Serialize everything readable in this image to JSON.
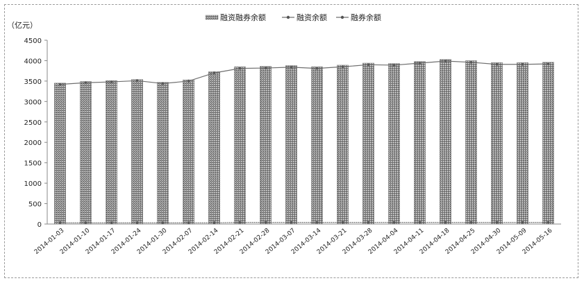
{
  "chart_data": {
    "type": "bar",
    "unit_label": "（亿元）",
    "legend": [
      "融资融券余额",
      "融资余额",
      "融券余额"
    ],
    "legend_position": "top",
    "categories": [
      "2014-01-03",
      "2014-01-10",
      "2014-01-17",
      "2014-01-24",
      "2014-01-30",
      "2014-02-07",
      "2014-02-14",
      "2014-02-21",
      "2014-02-28",
      "2014-03-07",
      "2014-03-14",
      "2014-03-21",
      "2014-03-28",
      "2014-04-04",
      "2014-04-11",
      "2014-04-18",
      "2014-04-25",
      "2014-04-30",
      "2014-05-09",
      "2014-05-16"
    ],
    "series": [
      {
        "name": "融资融券余额",
        "kind": "bar",
        "values": [
          3450,
          3490,
          3510,
          3540,
          3470,
          3530,
          3730,
          3850,
          3860,
          3880,
          3850,
          3890,
          3940,
          3930,
          3980,
          4030,
          4000,
          3950,
          3950,
          3960
        ]
      },
      {
        "name": "融资余额",
        "kind": "line",
        "values": [
          3420,
          3460,
          3480,
          3510,
          3440,
          3500,
          3700,
          3810,
          3820,
          3840,
          3810,
          3850,
          3900,
          3890,
          3940,
          3990,
          3960,
          3910,
          3910,
          3920
        ]
      },
      {
        "name": "融券余额",
        "kind": "line",
        "values": [
          30,
          30,
          30,
          30,
          30,
          30,
          30,
          40,
          40,
          40,
          40,
          40,
          40,
          40,
          40,
          40,
          40,
          40,
          40,
          40
        ]
      }
    ],
    "ylim": [
      0,
      4500
    ],
    "yticks": [
      0,
      500,
      1000,
      1500,
      2000,
      2500,
      3000,
      3500,
      4000,
      4500
    ],
    "grid": false,
    "colors": {
      "bar": "#8c8c8c",
      "line": "#6e6e6e",
      "axis": "#888888"
    }
  }
}
